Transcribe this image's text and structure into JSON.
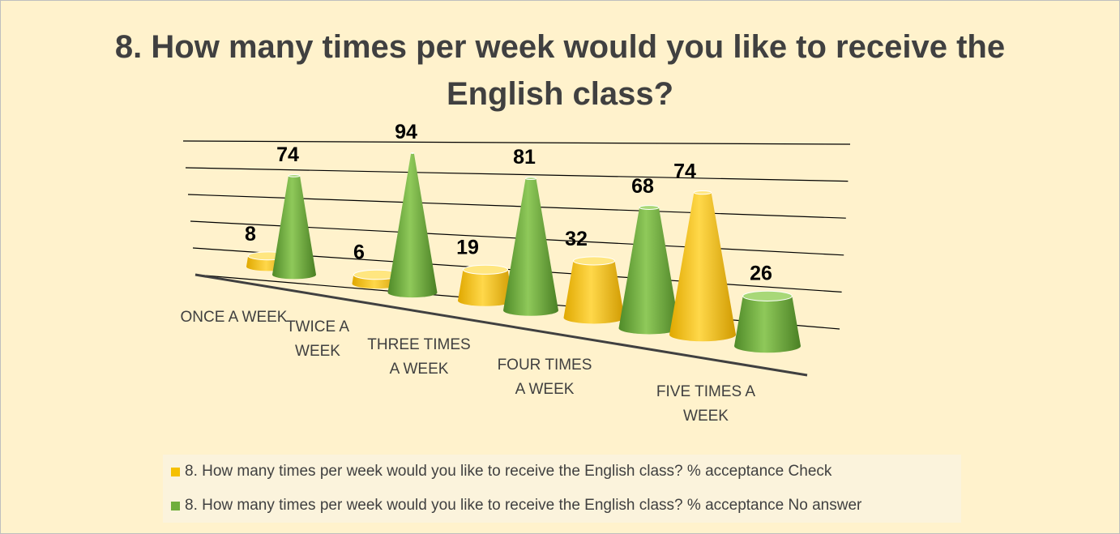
{
  "chart_data": {
    "type": "cone3d",
    "title": "8. How many times per week would you like to receive the English class?",
    "categories": [
      "ONCE A WEEK",
      "TWICE A WEEK",
      "THREE TIMES A WEEK",
      "FOUR TIMES A WEEK",
      "FIVE TIMES A WEEK"
    ],
    "series": [
      {
        "name": "8. How many times per week would you like to receive the English class? % acceptance Check",
        "color": "#f5c000",
        "values": [
          8,
          6,
          19,
          32,
          74
        ]
      },
      {
        "name": "8. How many times per week would you like to receive the English class? % acceptance No answer",
        "color": "#6fae3c",
        "values": [
          74,
          94,
          81,
          68,
          26
        ]
      }
    ],
    "ylim": [
      0,
      100
    ],
    "yticks": [
      0,
      20,
      40,
      60,
      80,
      100
    ],
    "grid": true
  }
}
